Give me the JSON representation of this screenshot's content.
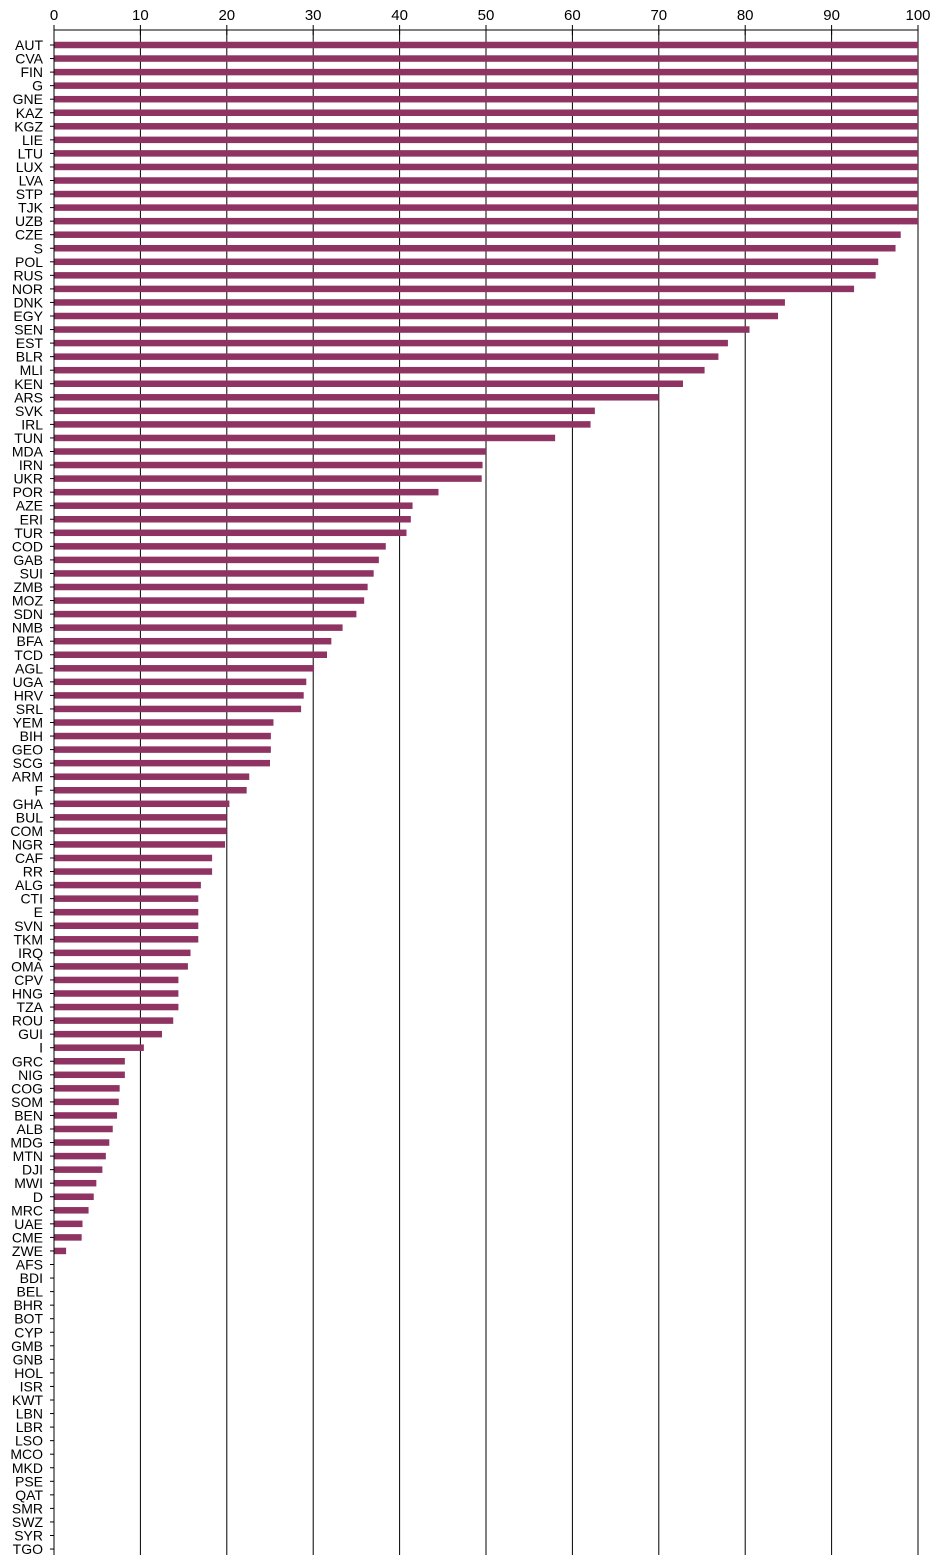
{
  "chart_data": {
    "type": "bar",
    "orientation": "horizontal",
    "x_axis_position": "top",
    "xlim": [
      0,
      100
    ],
    "x_ticks": [
      "0",
      "10",
      "20",
      "30",
      "40",
      "50",
      "60",
      "70",
      "80",
      "90",
      "100"
    ],
    "grid": "vertical",
    "bar_color": "#8f3363",
    "title": "",
    "xlabel": "",
    "ylabel": "",
    "categories": [
      "AUT",
      "CVA",
      "FIN",
      "G",
      "GNE",
      "KAZ",
      "KGZ",
      "LIE",
      "LTU",
      "LUX",
      "LVA",
      "STP",
      "TJK",
      "UZB",
      "CZE",
      "S",
      "POL",
      "RUS",
      "NOR",
      "DNK",
      "EGY",
      "SEN",
      "EST",
      "BLR",
      "MLI",
      "KEN",
      "ARS",
      "SVK",
      "IRL",
      "TUN",
      "MDA",
      "IRN",
      "UKR",
      "POR",
      "AZE",
      "ERI",
      "TUR",
      "COD",
      "GAB",
      "SUI",
      "ZMB",
      "MOZ",
      "SDN",
      "NMB",
      "BFA",
      "TCD",
      "AGL",
      "UGA",
      "HRV",
      "SRL",
      "YEM",
      "BIH",
      "GEO",
      "SCG",
      "ARM",
      "F",
      "GHA",
      "BUL",
      "COM",
      "NGR",
      "CAF",
      "RR",
      "ALG",
      "CTI",
      "E",
      "SVN",
      "TKM",
      "IRQ",
      "OMA",
      "CPV",
      "HNG",
      "TZA",
      "ROU",
      "GUI",
      "I",
      "GRC",
      "NIG",
      "COG",
      "SOM",
      "BEN",
      "ALB",
      "MDG",
      "MTN",
      "DJI",
      "MWI",
      "D",
      "MRC",
      "UAE",
      "CME",
      "ZWE",
      "AFS",
      "BDI",
      "BEL",
      "BHR",
      "BOT",
      "CYP",
      "GMB",
      "GNB",
      "HOL",
      "ISR",
      "KWT",
      "LBN",
      "LBR",
      "LSO",
      "MCO",
      "MKD",
      "PSE",
      "QAT",
      "SMR",
      "SWZ",
      "SYR",
      "TGO"
    ],
    "values": [
      100,
      100,
      100,
      100,
      100,
      100,
      100,
      100,
      100,
      100,
      100,
      100,
      100,
      100,
      98,
      97.4,
      95.4,
      95.1,
      92.6,
      84.6,
      83.8,
      80.5,
      78,
      76.9,
      75.3,
      72.8,
      70,
      62.6,
      62.1,
      58,
      50,
      49.6,
      49.5,
      44.5,
      41.5,
      41.3,
      40.8,
      38.4,
      37.6,
      37,
      36.3,
      35.9,
      35,
      33.4,
      32.1,
      31.6,
      30.1,
      29.2,
      28.9,
      28.6,
      25.4,
      25.1,
      25.1,
      25,
      22.6,
      22.3,
      20.3,
      20,
      20,
      19.8,
      18.3,
      18.3,
      17,
      16.7,
      16.7,
      16.7,
      16.7,
      15.8,
      15.5,
      14.4,
      14.4,
      14.4,
      13.8,
      12.5,
      10.4,
      8.2,
      8.2,
      7.6,
      7.5,
      7.3,
      6.8,
      6.4,
      6,
      5.6,
      4.9,
      4.6,
      4,
      3.3,
      3.2,
      1.4,
      0,
      0,
      0,
      0,
      0,
      0,
      0,
      0,
      0,
      0,
      0,
      0,
      0,
      0,
      0,
      0,
      0,
      0,
      0,
      0,
      0,
      0
    ]
  }
}
